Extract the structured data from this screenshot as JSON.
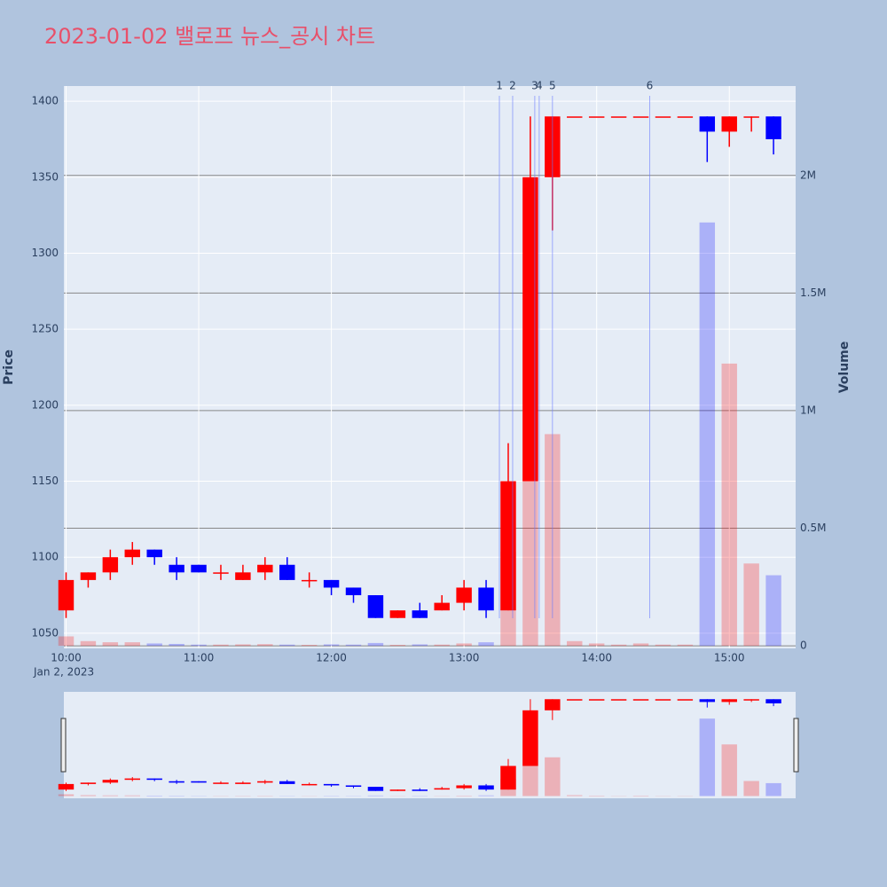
{
  "chart_data": {
    "type": "candlestick",
    "title": "2023-01-02 밸로프 뉴스_공시 차트",
    "y_label": "Price",
    "y2_label": "Volume",
    "x_date_label": "Jan 2, 2023",
    "x": [
      "10:00",
      "10:10",
      "10:20",
      "10:30",
      "10:40",
      "10:50",
      "11:00",
      "11:10",
      "11:20",
      "11:30",
      "11:40",
      "11:50",
      "12:00",
      "12:10",
      "12:20",
      "12:30",
      "12:40",
      "12:50",
      "13:00",
      "13:10",
      "13:20",
      "13:30",
      "13:40",
      "13:50",
      "14:00",
      "14:10",
      "14:20",
      "14:30",
      "14:40",
      "14:50",
      "15:00",
      "15:10",
      "15:20"
    ],
    "open": [
      1065,
      1085,
      1090,
      1100,
      1105,
      1095,
      1095,
      1090,
      1085,
      1090,
      1095,
      1085,
      1085,
      1080,
      1075,
      1060,
      1065,
      1065,
      1070,
      1080,
      1065,
      1150,
      1350,
      1390,
      1390,
      1390,
      1390,
      1390,
      1390,
      1390,
      1380,
      1390,
      1390
    ],
    "high": [
      1090,
      1090,
      1105,
      1110,
      1105,
      1100,
      1095,
      1095,
      1095,
      1100,
      1100,
      1090,
      1085,
      1080,
      1075,
      1065,
      1070,
      1075,
      1085,
      1085,
      1175,
      1390,
      1390,
      1390,
      1390,
      1390,
      1390,
      1390,
      1390,
      1390,
      1390,
      1390,
      1390
    ],
    "low": [
      1060,
      1080,
      1085,
      1095,
      1095,
      1085,
      1090,
      1085,
      1085,
      1085,
      1085,
      1080,
      1075,
      1070,
      1060,
      1060,
      1060,
      1065,
      1065,
      1060,
      1065,
      1150,
      1315,
      1390,
      1390,
      1390,
      1390,
      1390,
      1390,
      1360,
      1370,
      1380,
      1365
    ],
    "close": [
      1085,
      1090,
      1100,
      1105,
      1100,
      1090,
      1090,
      1090,
      1090,
      1095,
      1085,
      1085,
      1080,
      1075,
      1060,
      1065,
      1060,
      1070,
      1080,
      1065,
      1150,
      1350,
      1390,
      1390,
      1390,
      1390,
      1390,
      1390,
      1390,
      1380,
      1390,
      1390,
      1375
    ],
    "volume": [
      40000,
      20000,
      15000,
      15000,
      10000,
      8000,
      5000,
      5000,
      6000,
      7000,
      5000,
      4000,
      6000,
      5000,
      12000,
      4000,
      6000,
      5000,
      10000,
      15000,
      400000,
      1300000,
      900000,
      20000,
      10000,
      5000,
      10000,
      5000,
      5000,
      1800000,
      1200000,
      350000,
      300000
    ],
    "increasing_color": "#ff0000",
    "decreasing_color": "#0000ff",
    "xlim": [
      "09:59",
      "15:30"
    ],
    "xticks": [
      "10:00",
      "11:00",
      "12:00",
      "13:00",
      "14:00",
      "15:00"
    ],
    "ylim": [
      1040,
      1410
    ],
    "yticks": [
      1050,
      1100,
      1150,
      1200,
      1250,
      1300,
      1350,
      1400
    ],
    "y2lim": [
      -11000,
      2380000
    ],
    "y2ticks": [
      0,
      {
        "value": 500000,
        "label": "0.5M"
      },
      {
        "value": 1000000,
        "label": "1M"
      },
      {
        "value": 1500000,
        "label": "1.5M"
      },
      {
        "value": 2000000,
        "label": "2M"
      }
    ],
    "news": [
      {
        "x": "13:16",
        "label": "1"
      },
      {
        "x": "13:22",
        "label": "2"
      },
      {
        "x": "13:32",
        "label": "3"
      },
      {
        "x": "13:34",
        "label": "4"
      },
      {
        "x": "13:40",
        "label": "5"
      },
      {
        "x": "14:24",
        "label": "6"
      }
    ],
    "grid": true,
    "rangeslider": true
  }
}
